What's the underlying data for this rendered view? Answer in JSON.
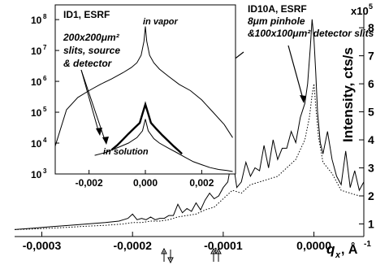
{
  "chart_data": [
    {
      "type": "line",
      "xlabel": "q",
      "xlabel_sub": "x",
      "xlabel_unit": ", Å",
      "xlabel_unit_exp": "-1",
      "ylabel": "Intensity, cts/s",
      "ylabel_exp": "x10",
      "ylabel_exp_sup": "5",
      "x_ticks": [
        "-0,0003",
        "-0,0002",
        "-0,0001",
        "0,0000"
      ],
      "x_tick_values": [
        -0.0003,
        -0.0002,
        -0.0001,
        0.0
      ],
      "y_ticks": [
        "1",
        "2",
        "3",
        "4",
        "5",
        "6",
        "7",
        "8"
      ],
      "y_tick_values": [
        1,
        2,
        3,
        4,
        5,
        6,
        7,
        8
      ],
      "xlim": [
        -0.00033,
        5.5e-05
      ],
      "ylim": [
        0.55,
        8.7
      ],
      "y_axis_side": "right",
      "series": [
        {
          "style": "solid",
          "x": [
            -0.00033,
            -0.00031,
            -0.00029,
            -0.00027,
            -0.00025,
            -0.00023,
            -0.000215,
            -0.00021,
            -0.000205,
            -0.0002,
            -0.000195,
            -0.00019,
            -0.000185,
            -0.00018,
            -0.000175,
            -0.00017,
            -0.000165,
            -0.00016,
            -0.000155,
            -0.00015,
            -0.000145,
            -0.00014,
            -0.000135,
            -0.00013,
            -0.000125,
            -0.00012,
            -0.000115,
            -0.00011,
            -0.000105,
            -0.0001,
            -9.5e-05,
            -9e-05,
            -8.5e-05,
            -8e-05,
            -7.5e-05,
            -7e-05,
            -6.5e-05,
            -6e-05,
            -5.5e-05,
            -5e-05,
            -4.5e-05,
            -4e-05,
            -3.5e-05,
            -3e-05,
            -2.5e-05,
            -2e-05,
            -1.5e-05,
            -1e-05,
            -7e-06,
            -4e-06,
            -2e-06,
            0.0,
            2e-06,
            4e-06,
            7e-06,
            1e-05,
            1.5e-05,
            2e-05,
            2.5e-05,
            3e-05,
            3.5e-05,
            4e-05,
            4.5e-05,
            5e-05,
            5.5e-05
          ],
          "y": [
            0.8,
            0.85,
            0.9,
            0.95,
            1.0,
            1.05,
            1.1,
            1.15,
            1.2,
            1.35,
            1.15,
            1.2,
            1.15,
            1.25,
            1.15,
            1.2,
            1.2,
            1.3,
            1.3,
            1.7,
            1.4,
            1.55,
            1.45,
            1.75,
            1.5,
            1.85,
            2.1,
            1.9,
            2.0,
            2.3,
            2.5,
            3.4,
            2.3,
            2.5,
            3.2,
            2.7,
            3.0,
            2.9,
            3.8,
            3.0,
            4.0,
            3.3,
            3.7,
            3.7,
            4.3,
            3.9,
            4.8,
            5.3,
            6.0,
            7.3,
            8.3,
            7.6,
            6.4,
            5.0,
            3.9,
            3.5,
            4.3,
            3.3,
            2.7,
            2.4,
            3.6,
            2.3,
            2.9,
            2.2,
            2.5
          ]
        },
        {
          "style": "dotted",
          "x": [
            -0.00033,
            -0.00031,
            -0.00029,
            -0.00027,
            -0.00025,
            -0.00023,
            -0.00021,
            -0.0002,
            -0.00019,
            -0.00018,
            -0.00017,
            -0.00016,
            -0.00015,
            -0.00014,
            -0.00013,
            -0.00012,
            -0.00011,
            -0.0001,
            -9e-05,
            -8e-05,
            -7e-05,
            -6e-05,
            -5e-05,
            -4e-05,
            -3e-05,
            -2e-05,
            -1e-05,
            -5e-06,
            -2e-06,
            0.0,
            2e-06,
            5e-06,
            1e-05,
            2e-05,
            3e-05,
            4e-05,
            5e-05,
            5.5e-05
          ],
          "y": [
            0.8,
            0.82,
            0.85,
            0.88,
            0.92,
            0.95,
            1.0,
            1.05,
            1.05,
            1.1,
            1.1,
            1.15,
            1.25,
            1.3,
            1.35,
            1.5,
            1.6,
            1.9,
            2.2,
            2.1,
            2.4,
            2.5,
            2.6,
            2.7,
            3.0,
            3.3,
            4.0,
            4.8,
            5.6,
            6.0,
            5.2,
            4.1,
            3.2,
            2.8,
            2.2,
            2.1,
            2.0,
            2.0
          ]
        }
      ],
      "annotations": {
        "right_label_lines": [
          "ID10A, ESRF",
          "8μm pinhole",
          "&100x100μm² detector slits"
        ],
        "arrows_below": [
          "↑↓",
          "↑↑"
        ]
      }
    },
    {
      "type": "line",
      "inset": true,
      "y_scale": "log",
      "x_ticks": [
        "-0,002",
        "0,000",
        "0,002"
      ],
      "x_tick_values": [
        -0.002,
        0.0,
        0.002
      ],
      "y_ticks": [
        "10",
        "10",
        "10",
        "10",
        "10",
        "10"
      ],
      "y_tick_exps": [
        "3",
        "4",
        "5",
        "6",
        "7",
        "8"
      ],
      "y_tick_values": [
        1000,
        10000,
        100000,
        1000000,
        10000000,
        100000000
      ],
      "xlim": [
        -0.0032,
        0.0032
      ],
      "ylim": [
        1000,
        300000000
      ],
      "series": [
        {
          "name": "in vapor",
          "style": "thin",
          "x": [
            -0.0032,
            -0.0028,
            -0.0024,
            -0.002,
            -0.0016,
            -0.0012,
            -0.0008,
            -0.0005,
            -0.0003,
            -0.00015,
            -5e-05,
            0.0,
            5e-05,
            0.00015,
            0.0003,
            0.0005,
            0.0008,
            0.0012,
            0.0016,
            0.002,
            0.0024,
            0.0028,
            0.0031
          ],
          "y": [
            8000,
            120000,
            300000,
            500000,
            800000,
            1200000,
            1900000,
            2800000,
            4000000,
            7000000,
            20000000,
            60000000,
            20000000,
            7000000,
            4000000,
            2500000,
            1500000,
            800000,
            500000,
            250000,
            100000,
            40000,
            15000
          ]
        },
        {
          "name": "in solution",
          "style": "thin",
          "x": [
            -0.0018,
            -0.0014,
            -0.001,
            -0.0006,
            -0.0003,
            -0.0001,
            0.0,
            0.0001,
            0.0003,
            0.0005,
            0.0008,
            0.0011,
            0.0014,
            0.0017,
            0.002,
            0.0023,
            0.0026,
            0.0029,
            0.0031
          ],
          "y": [
            4000,
            5000,
            7000,
            10000,
            15000,
            25000,
            60000,
            25000,
            14000,
            10000,
            7000,
            5000,
            3500,
            2500,
            2000,
            1600,
            1400,
            1300,
            1200
          ]
        },
        {
          "style": "bold",
          "x": [
            -0.0012,
            -0.001,
            -0.0008,
            -0.0006,
            -0.0004,
            -0.0002,
            -0.0001,
            0.0,
            0.0001,
            0.0002,
            0.0004,
            0.0006,
            0.0008,
            0.001,
            0.0012,
            0.0013
          ],
          "y": [
            6000,
            8500,
            13000,
            20000,
            30000,
            45000,
            90000,
            180000,
            90000,
            45000,
            28000,
            18000,
            12000,
            8000,
            5500,
            4500
          ]
        }
      ],
      "annotations": {
        "left_label_lines": [
          "ID1, ESRF",
          "200x200μm²",
          "slits, source",
          "& detector"
        ],
        "vapor_label": "in vapor",
        "solution_label": "in solution"
      }
    }
  ]
}
